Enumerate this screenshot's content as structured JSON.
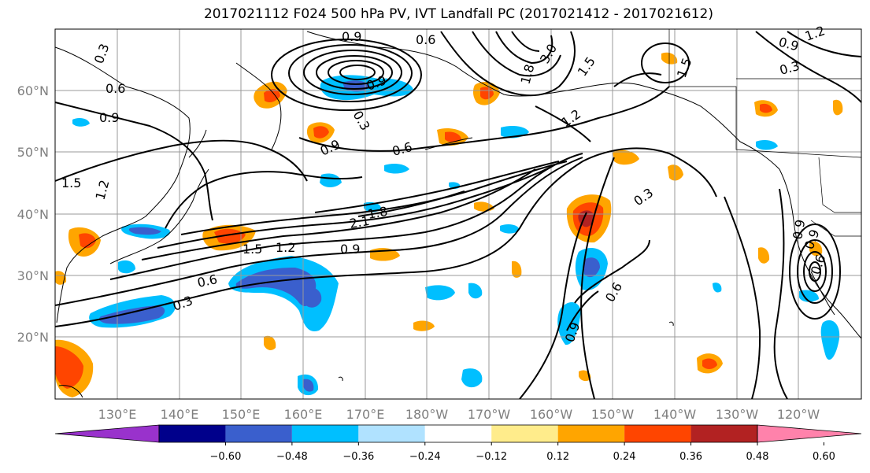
{
  "title": "2017021112 F024 500 hPa PV, IVT Landfall PC (2017021412 - 2017021612)",
  "axes": {
    "lon_ticks": [
      "130°E",
      "140°E",
      "150°E",
      "160°E",
      "170°E",
      "180°W",
      "170°W",
      "160°W",
      "150°W",
      "140°W",
      "130°W",
      "120°W"
    ],
    "lat_ticks": [
      "60°N",
      "50°N",
      "40°N",
      "30°N",
      "20°N"
    ]
  },
  "colorbar": {
    "ticks": [
      "−0.60",
      "−0.48",
      "−0.36",
      "−0.24",
      "−0.12",
      "0.12",
      "0.24",
      "0.36",
      "0.48",
      "0.60"
    ],
    "colors": [
      "#9932cc",
      "#00008b",
      "#3a5fcd",
      "#00bfff",
      "#b0e2ff",
      "#ffffff",
      "#ffec8b",
      "#ffa500",
      "#ff4500",
      "#b22222",
      "#ff82ab"
    ]
  },
  "contour_labels": [
    {
      "text": "0.3"
    },
    {
      "text": "0.6"
    },
    {
      "text": "0.9"
    },
    {
      "text": "0.9"
    },
    {
      "text": "0.6"
    },
    {
      "text": "0.9"
    },
    {
      "text": "1.2"
    },
    {
      "text": "1.5"
    },
    {
      "text": "0.9"
    },
    {
      "text": "0.6"
    },
    {
      "text": "0.9"
    },
    {
      "text": "0.3"
    },
    {
      "text": "1.5"
    },
    {
      "text": "1.2"
    },
    {
      "text": "1.5"
    },
    {
      "text": "1.2"
    },
    {
      "text": "0.9"
    },
    {
      "text": "0.6"
    },
    {
      "text": "0.3"
    },
    {
      "text": "1.8"
    },
    {
      "text": "2.1"
    },
    {
      "text": "0.3"
    },
    {
      "text": "0.6"
    },
    {
      "text": "0.9"
    },
    {
      "text": "0.9"
    },
    {
      "text": "0.3"
    },
    {
      "text": "3.0"
    },
    {
      "text": "1.5"
    },
    {
      "text": "1.8"
    },
    {
      "text": "1.2"
    },
    {
      "text": "0.9"
    },
    {
      "text": "0.6"
    }
  ]
}
